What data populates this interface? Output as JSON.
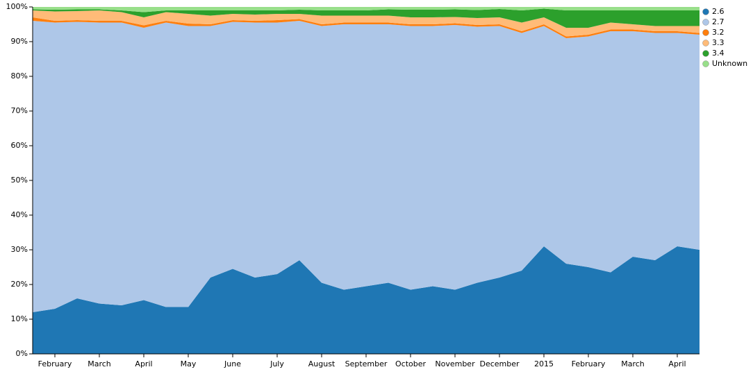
{
  "chart_data": {
    "type": "stacked_area",
    "categories": [
      null,
      "February",
      null,
      "March",
      null,
      "April",
      null,
      "May",
      null,
      "June",
      null,
      "July",
      null,
      "August",
      null,
      "September",
      null,
      "October",
      null,
      "November",
      null,
      "December",
      null,
      "2015",
      null,
      "February",
      null,
      "March",
      null,
      "April",
      null
    ],
    "series": [
      {
        "name": "2.6",
        "color": "#1f77b4",
        "values": [
          12,
          13,
          16,
          14.5,
          14,
          15.5,
          13.5,
          13.5,
          22,
          24.5,
          22,
          23,
          27,
          20.5,
          18.5,
          19.5,
          20.5,
          18.5,
          19.5,
          18.5,
          20.5,
          22,
          24,
          31,
          26,
          25,
          23.5,
          28,
          27,
          31,
          30
        ]
      },
      {
        "name": "2.7",
        "color": "#aec7e8",
        "values": [
          84,
          82.5,
          79.7,
          81,
          81.5,
          78.5,
          82,
          81,
          72.5,
          71.2,
          73.5,
          72.5,
          69,
          74,
          76.5,
          75.5,
          74.5,
          76,
          75,
          76.3,
          73.8,
          72.5,
          68.5,
          63.5,
          65,
          66.5,
          69.5,
          65,
          65.5,
          61.5,
          62
        ]
      },
      {
        "name": "3.2",
        "color": "#ff7f0e",
        "values": [
          1,
          0.5,
          0.5,
          0.5,
          0.5,
          0.7,
          0.5,
          0.7,
          0.5,
          0.5,
          0.5,
          0.7,
          0.5,
          0.5,
          0.5,
          0.5,
          0.5,
          0.5,
          0.5,
          0.5,
          0.5,
          0.5,
          0.5,
          0.5,
          0.5,
          0.5,
          0.5,
          0.5,
          0.5,
          0.5,
          0.5
        ]
      },
      {
        "name": "3.3",
        "color": "#ffbb78",
        "values": [
          2,
          2.7,
          2.6,
          3,
          2.5,
          2.3,
          2.5,
          2.8,
          2.5,
          1.8,
          1.8,
          1.8,
          1.5,
          2.5,
          2,
          2,
          2,
          2,
          2,
          1.8,
          2,
          2,
          2.5,
          2,
          2.5,
          2,
          2,
          1.5,
          1.5,
          1.5,
          2
        ]
      },
      {
        "name": "3.4",
        "color": "#2ca02c",
        "values": [
          0.3,
          0.5,
          0.5,
          0.3,
          0.5,
          1.5,
          0.5,
          1,
          1.5,
          1,
          1.2,
          1,
          1.2,
          1.5,
          1.5,
          1.5,
          1.8,
          2.2,
          2.2,
          2.2,
          2.3,
          2.4,
          3.5,
          2.5,
          5,
          5,
          3.5,
          4,
          4.5,
          4.5,
          4.5
        ]
      },
      {
        "name": "Unknown",
        "color": "#98df8a",
        "values": [
          0.7,
          0.8,
          0.7,
          0.7,
          1,
          1.5,
          1,
          1,
          1,
          1,
          1,
          1,
          0.8,
          1,
          1,
          1,
          0.7,
          0.8,
          0.8,
          0.7,
          0.9,
          0.6,
          1,
          0.5,
          1,
          1,
          1,
          1,
          1,
          1,
          1
        ]
      }
    ],
    "ylim": [
      0,
      100
    ],
    "yticks": [
      {
        "value": 0,
        "label": "0%"
      },
      {
        "value": 10,
        "label": "10%"
      },
      {
        "value": 20,
        "label": "20%"
      },
      {
        "value": 30,
        "label": "30%"
      },
      {
        "value": 40,
        "label": "40%"
      },
      {
        "value": 50,
        "label": "50%"
      },
      {
        "value": 60,
        "label": "60%"
      },
      {
        "value": 70,
        "label": "70%"
      },
      {
        "value": 80,
        "label": "80%"
      },
      {
        "value": 90,
        "label": "90%"
      },
      {
        "value": 100,
        "label": "100%"
      }
    ],
    "legend": "right"
  }
}
